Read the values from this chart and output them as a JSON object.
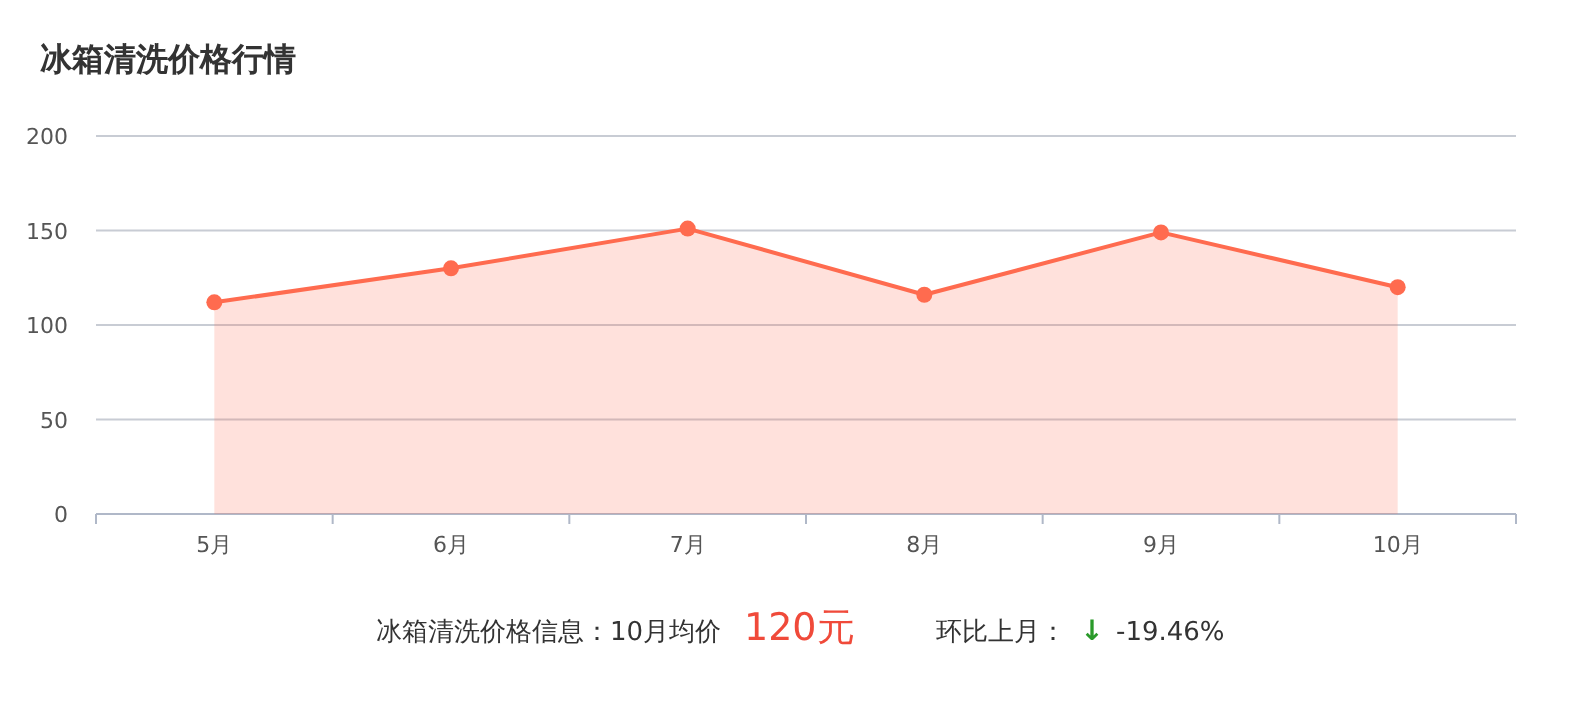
{
  "chart_data": {
    "type": "area",
    "title": "冰箱清洗价格行情",
    "categories": [
      "5月",
      "6月",
      "7月",
      "8月",
      "9月",
      "10月"
    ],
    "series": [
      {
        "color": "#ff6b4f",
        "values": [
          112,
          130,
          151,
          116,
          149,
          120
        ]
      }
    ],
    "ylim": [
      0,
      200
    ],
    "yticks": [
      0,
      50,
      100,
      150,
      200
    ],
    "grid": "y",
    "marker": "circle",
    "annotations": [
      "冰箱清洗价格信息：10月均价",
      "120元",
      "环比上月：",
      "↓",
      "-19.46%"
    ]
  }
}
